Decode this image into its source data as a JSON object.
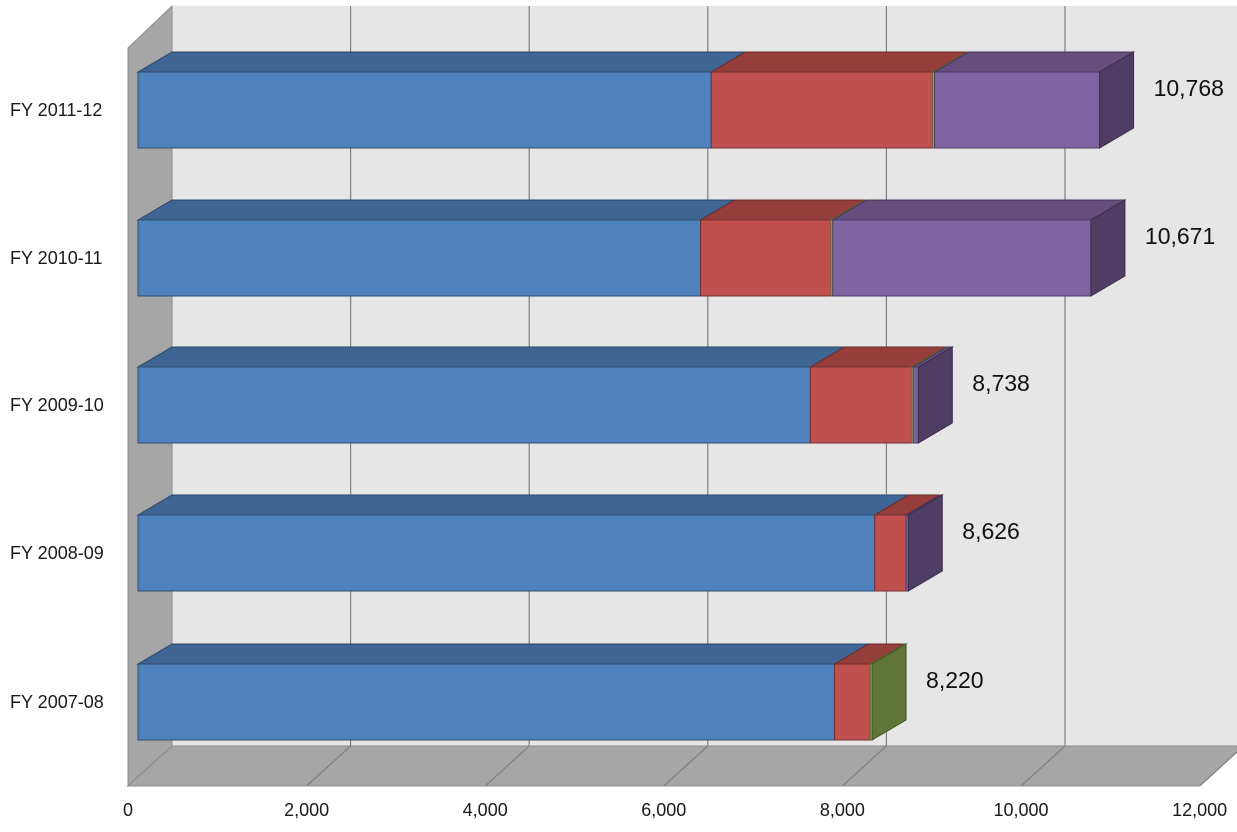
{
  "chart_data": {
    "type": "bar",
    "orientation": "horizontal",
    "stacked": true,
    "three_d": true,
    "categories": [
      "FY 2007-08",
      "FY 2008-09",
      "FY 2009-10",
      "FY 2010-11",
      "FY 2011-12"
    ],
    "series": [
      {
        "color": "#4F81BD",
        "values": [
          7800,
          8250,
          7530,
          6300,
          6420
        ]
      },
      {
        "color": "#C0504D",
        "values": [
          400,
          350,
          1130,
          1460,
          2480
        ]
      },
      {
        "color": "#9BBB59",
        "values": [
          20,
          0,
          20,
          20,
          20
        ]
      },
      {
        "color": "#8064A2",
        "values": [
          0,
          26,
          58,
          2891,
          1848
        ]
      }
    ],
    "totals": [
      "8,220",
      "8,626",
      "8,738",
      "10,671",
      "10,768"
    ],
    "x_ticks": [
      "0",
      "2,000",
      "4,000",
      "6,000",
      "8,000",
      "10,000",
      "12,000"
    ],
    "xlim": [
      0,
      12000
    ],
    "grid": true,
    "title": "",
    "xlabel": "",
    "ylabel": ""
  }
}
